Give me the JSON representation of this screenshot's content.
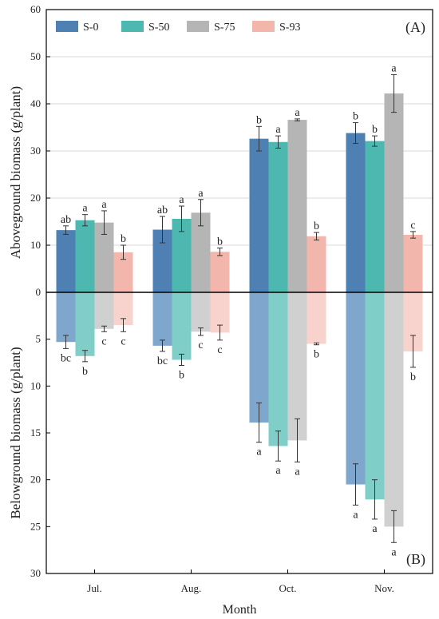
{
  "chart_data": {
    "type": "bar",
    "categories": [
      "Jul.",
      "Aug.",
      "Oct.",
      "Nov."
    ],
    "xlabel": "Month",
    "legend_position": "top-left",
    "series_colors": {
      "S-0": [
        "#4e80b3",
        "#7fa6cc"
      ],
      "S-50": [
        "#4db8b0",
        "#7fcfc8"
      ],
      "S-75": [
        "#b5b5b5",
        "#d0d0d0"
      ],
      "S-93": [
        "#f3b6ad",
        "#f8d3cd"
      ]
    },
    "top_panel": {
      "label": "(A)",
      "ylabel": "Aboveground biomass (g/plant)",
      "ylim": [
        0,
        60
      ],
      "yticks": [
        "0",
        "10",
        "20",
        "30",
        "40",
        "50",
        "60"
      ],
      "series": [
        {
          "name": "S-0",
          "values": [
            13.2,
            13.3,
            32.6,
            33.8
          ],
          "errors": [
            0.9,
            2.8,
            2.6,
            2.2
          ],
          "letters": [
            "ab",
            "ab",
            "b",
            "b"
          ]
        },
        {
          "name": "S-50",
          "values": [
            15.3,
            15.6,
            31.9,
            32.1
          ],
          "errors": [
            1.2,
            2.7,
            1.3,
            1.1
          ],
          "letters": [
            "a",
            "a",
            "a",
            "b"
          ]
        },
        {
          "name": "S-75",
          "values": [
            14.8,
            16.9,
            36.6,
            42.2
          ],
          "errors": [
            2.5,
            2.8,
            0.2,
            4.0
          ],
          "letters": [
            "a",
            "a",
            "a",
            "a"
          ]
        },
        {
          "name": "S-93",
          "values": [
            8.5,
            8.6,
            11.9,
            12.2
          ],
          "errors": [
            1.5,
            0.8,
            0.8,
            0.7
          ],
          "letters": [
            "b",
            "b",
            "b",
            "c"
          ]
        }
      ]
    },
    "bottom_panel": {
      "label": "(B)",
      "ylabel": "Belowground biomass (g/plant)",
      "ylim": [
        0,
        30
      ],
      "yticks": [
        "5",
        "10",
        "15",
        "20",
        "25",
        "30"
      ],
      "series": [
        {
          "name": "S-0",
          "values": [
            5.3,
            5.7,
            13.9,
            20.5
          ],
          "errors": [
            0.7,
            0.6,
            2.1,
            2.2
          ],
          "letters": [
            "bc",
            "bc",
            "a",
            "a"
          ]
        },
        {
          "name": "S-50",
          "values": [
            6.8,
            7.2,
            16.4,
            22.1
          ],
          "errors": [
            0.6,
            0.6,
            1.6,
            2.1
          ],
          "letters": [
            "b",
            "b",
            "a",
            "a"
          ]
        },
        {
          "name": "S-75",
          "values": [
            3.9,
            4.2,
            15.8,
            25.0
          ],
          "errors": [
            0.3,
            0.4,
            2.3,
            1.7
          ],
          "letters": [
            "c",
            "c",
            "a",
            "a"
          ]
        },
        {
          "name": "S-93",
          "values": [
            3.5,
            4.3,
            5.5,
            6.3
          ],
          "errors": [
            0.7,
            0.8,
            0.1,
            1.7
          ],
          "letters": [
            "c",
            "c",
            "b",
            "b"
          ]
        }
      ]
    }
  }
}
